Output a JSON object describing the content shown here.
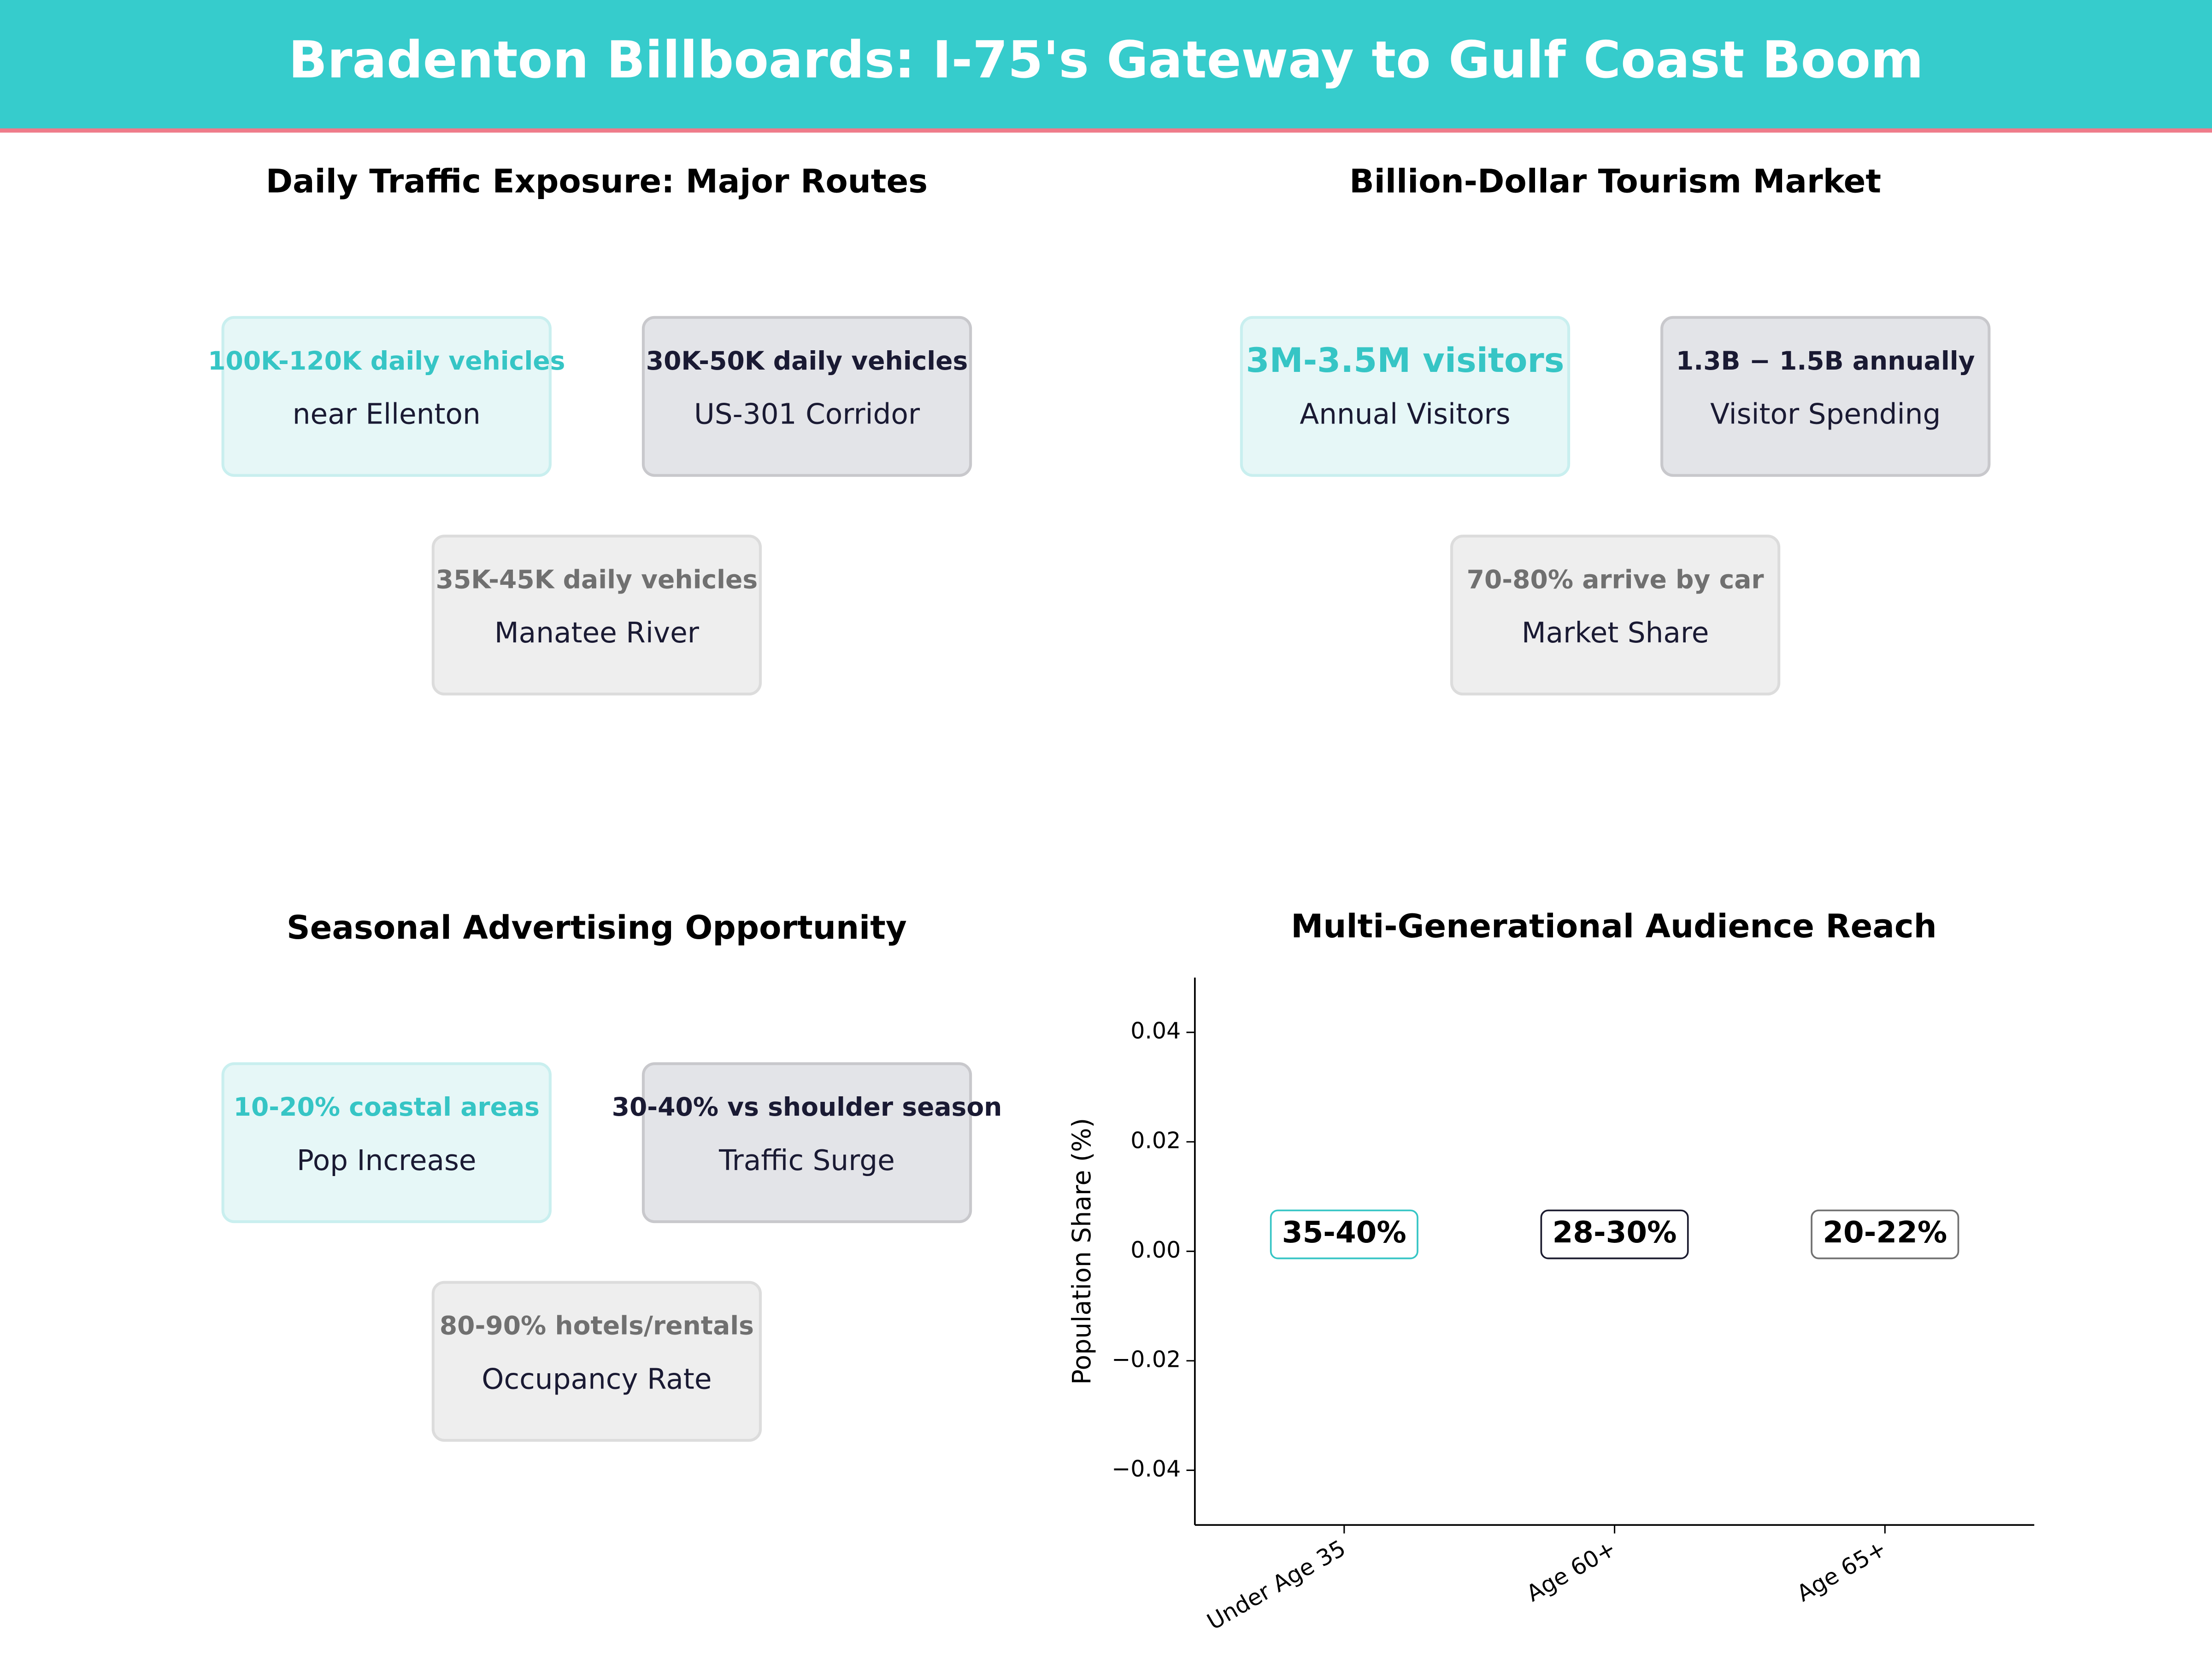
{
  "header": {
    "title": "Bradenton Billboards: I-75's Gateway to Gulf Coast Boom"
  },
  "panels": [
    {
      "title": "Daily Traffic Exposure: Major Routes",
      "cards": [
        {
          "value": "100K-120K daily vehicles",
          "label": "near Ellenton"
        },
        {
          "value": "30K-50K daily vehicles",
          "label": "US-301 Corridor"
        },
        {
          "value": "35K-45K daily vehicles",
          "label": "Manatee River"
        }
      ]
    },
    {
      "title": "Billion-Dollar Tourism Market",
      "cards": [
        {
          "value": "3M-3.5M visitors",
          "label": "Annual Visitors"
        },
        {
          "value": "1.3B − 1.5B annually",
          "label": "Visitor Spending"
        },
        {
          "value": "70-80% arrive by car",
          "label": "Market Share"
        }
      ]
    },
    {
      "title": "Seasonal Advertising Opportunity",
      "cards": [
        {
          "value": "10-20% coastal areas",
          "label": "Pop Increase"
        },
        {
          "value": "30-40% vs shoulder season",
          "label": "Traffic Surge"
        },
        {
          "value": "80-90% hotels/rentals",
          "label": "Occupancy Rate"
        }
      ]
    }
  ],
  "chart_data": {
    "type": "bar",
    "title": "Multi-Generational Audience Reach",
    "ylabel": "Population Share (%)",
    "categories": [
      "Under Age 35",
      "Age 60+",
      "Age 65+"
    ],
    "annotations": [
      "35-40%",
      "28-30%",
      "20-22%"
    ],
    "annotation_colors": [
      "#36c5c5",
      "#1a1a2e",
      "#707070"
    ],
    "ylim": [
      -0.05,
      0.05
    ],
    "yticks": [
      {
        "value": -0.04,
        "label": "−0.04"
      },
      {
        "value": -0.02,
        "label": "−0.02"
      },
      {
        "value": 0,
        "label": "0.00"
      },
      0.02,
      0.04
    ],
    "grid": false
  }
}
